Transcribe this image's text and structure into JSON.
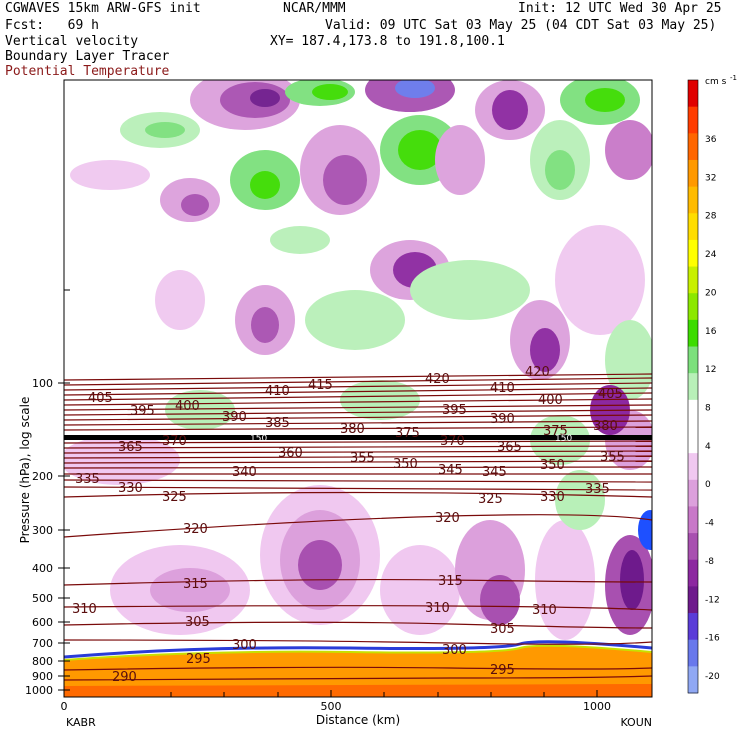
{
  "header": {
    "model": "CGWAVES 15km ARW-GFS init",
    "center": "NCAR/MMM",
    "init": "Init: 12 UTC Wed 30 Apr 25",
    "fcst": "Fcst:   69 h",
    "valid": "Valid: 09 UTC Sat 03 May 25 (04 CDT Sat 03 May 25)",
    "field1": "Vertical velocity",
    "field2": "Boundary Layer Tracer",
    "field3": "Potential Temperature",
    "xy": "XY= 187.4,173.8 to 191.8,100.1"
  },
  "colors": {
    "theta_line": "#7a0a0a",
    "theta_label": "#8b1a1a"
  },
  "colorbar": {
    "unit": "cm s",
    "unit_exp": "-1",
    "labels": [
      "36",
      "32",
      "28",
      "24",
      "20",
      "16",
      "12",
      "8",
      "4",
      "0",
      "-4",
      "-8",
      "-12",
      "-16",
      "-20"
    ],
    "colors": [
      "#e00000",
      "#ff3c00",
      "#ff6600",
      "#ff9900",
      "#ffbb00",
      "#ffdd00",
      "#ffff00",
      "#c8f000",
      "#8ce800",
      "#3cdc00",
      "#7ce07c",
      "#b8f0b8",
      "#ffffff",
      "#ffffff",
      "#f0c8f0",
      "#dca0dc",
      "#c878c8",
      "#a850b0",
      "#8c28a0",
      "#6e1a8c",
      "#5a3cd8",
      "#6878ec",
      "#90a8f4"
    ]
  },
  "chart_data": {
    "type": "contour",
    "xlabel": "Distance (km)",
    "ylabel": "Pressure (hPa), log scale",
    "xlim": [
      0,
      1100
    ],
    "xticks": [
      "0",
      "500",
      "1000"
    ],
    "x_endpoints": [
      "KABR",
      "KOUN"
    ],
    "yticks": [
      "100",
      "200",
      "300",
      "400",
      "500",
      "600",
      "700",
      "800",
      "900",
      "1000"
    ],
    "theta_labels": [
      "420",
      "410",
      "415",
      "405",
      "395",
      "400",
      "390",
      "385",
      "380",
      "375",
      "370",
      "365",
      "360",
      "355",
      "350",
      "345",
      "340",
      "335",
      "330",
      "325",
      "320",
      "315",
      "310",
      "305",
      "300",
      "295",
      "290"
    ],
    "tropopause_label": "150",
    "w_shading_levels": [
      -20,
      -16,
      -12,
      -8,
      -4,
      0,
      4,
      8,
      12,
      16,
      20,
      24,
      28,
      32,
      36
    ]
  }
}
